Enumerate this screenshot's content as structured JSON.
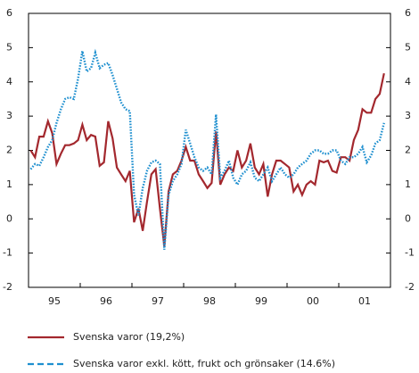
{
  "chart_data": {
    "type": "line",
    "categories": [
      "95",
      null,
      null,
      null,
      null,
      null,
      null,
      null,
      null,
      null,
      null,
      null,
      "96",
      null,
      null,
      null,
      null,
      null,
      null,
      null,
      null,
      null,
      null,
      null,
      "97",
      null,
      null,
      null,
      null,
      null,
      null,
      null,
      null,
      null,
      null,
      null,
      "98",
      null,
      null,
      null,
      null,
      null,
      null,
      null,
      null,
      null,
      null,
      null,
      "99",
      null,
      null,
      null,
      null,
      null,
      null,
      null,
      null,
      null,
      null,
      null,
      "00",
      null,
      null,
      null,
      null,
      null,
      null,
      null,
      null,
      null,
      null,
      null,
      "01",
      null,
      null,
      null,
      null,
      null,
      null,
      null,
      null,
      null,
      null
    ],
    "series": [
      {
        "name": "Svenska varor (19,2%)",
        "color": "#a3282e",
        "style": "solid",
        "values": [
          2.0,
          1.8,
          2.4,
          2.4,
          2.85,
          2.5,
          1.6,
          1.9,
          2.15,
          2.15,
          2.2,
          2.3,
          2.75,
          2.3,
          2.45,
          2.4,
          1.55,
          1.65,
          2.85,
          2.35,
          1.5,
          1.3,
          1.1,
          1.4,
          -0.1,
          0.3,
          -0.35,
          0.5,
          1.3,
          1.45,
          0.3,
          -0.8,
          0.8,
          1.3,
          1.4,
          1.7,
          2.1,
          1.7,
          1.7,
          1.3,
          1.1,
          0.9,
          1.05,
          2.55,
          1.0,
          1.3,
          1.5,
          1.4,
          2.0,
          1.5,
          1.7,
          2.2,
          1.5,
          1.3,
          1.6,
          0.65,
          1.3,
          1.7,
          1.7,
          1.6,
          1.5,
          0.8,
          1.0,
          0.7,
          1.0,
          1.1,
          1.0,
          1.7,
          1.65,
          1.7,
          1.4,
          1.35,
          1.8,
          1.8,
          1.7,
          2.3,
          2.6,
          3.2,
          3.1,
          3.1,
          3.5,
          3.65,
          4.25
        ]
      },
      {
        "name": "Svenska varor exkl. kött, frukt och grönsaker (14.6%)",
        "color": "#1e8fcf",
        "style": "dotted",
        "values": [
          1.45,
          1.6,
          1.55,
          1.8,
          2.1,
          2.3,
          2.8,
          3.2,
          3.5,
          3.55,
          3.5,
          4.1,
          4.9,
          4.3,
          4.4,
          4.85,
          4.4,
          4.5,
          4.55,
          4.2,
          3.8,
          3.4,
          3.2,
          3.15,
          0.7,
          0.1,
          0.9,
          1.4,
          1.65,
          1.7,
          1.6,
          -0.9,
          0.7,
          1.1,
          1.3,
          1.6,
          2.6,
          2.2,
          1.8,
          1.5,
          1.4,
          1.5,
          1.3,
          3.05,
          1.2,
          1.4,
          1.7,
          1.2,
          1.0,
          1.3,
          1.4,
          1.65,
          1.2,
          1.1,
          1.3,
          1.5,
          1.1,
          1.3,
          1.5,
          1.3,
          1.2,
          1.3,
          1.5,
          1.6,
          1.7,
          1.9,
          2.0,
          2.0,
          1.9,
          1.9,
          2.0,
          2.0,
          1.7,
          1.6,
          1.8,
          1.8,
          1.9,
          2.1,
          1.65,
          1.85,
          2.2,
          2.3,
          2.8
        ]
      }
    ],
    "ylim": [
      -2,
      6
    ],
    "yticks": [
      -2,
      -1,
      0,
      1,
      2,
      3,
      4,
      5,
      6
    ]
  }
}
